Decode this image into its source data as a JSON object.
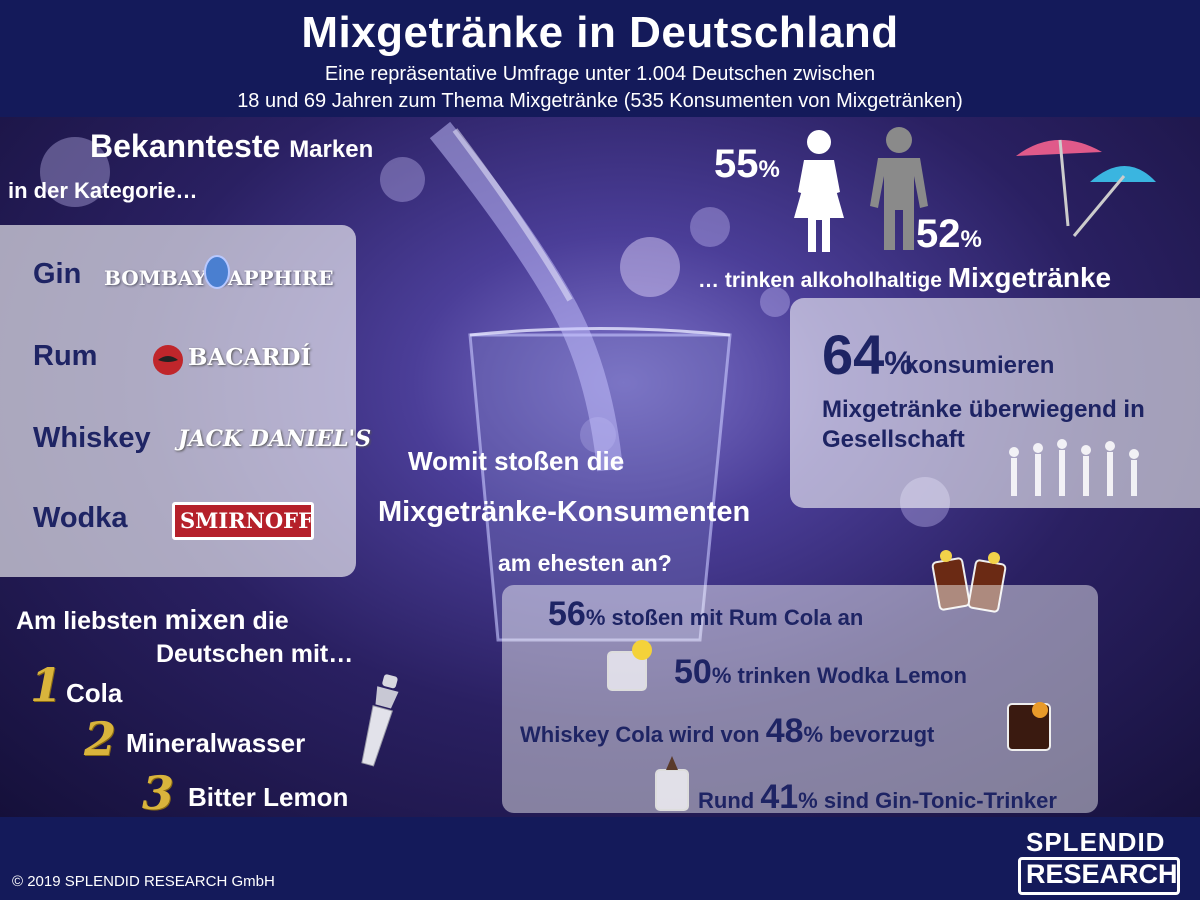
{
  "header": {
    "title": "Mixgetränke in Deutschland",
    "subtitle_line1": "Eine repräsentative Umfrage unter 1.004 Deutschen zwischen",
    "subtitle_line2": "18 und 69 Jahren zum Thema Mixgetränke (535 Konsumenten von Mixgetränken)"
  },
  "brands": {
    "heading_big": "Bekannteste",
    "heading_small": "Marken",
    "heading_line2": "in der Kategorie…",
    "items": [
      {
        "category": "Gin",
        "brand": "BOMBAY SAPPHIRE"
      },
      {
        "category": "Rum",
        "brand": "BACARDÍ"
      },
      {
        "category": "Whiskey",
        "brand": "JACK DANIEL'S"
      },
      {
        "category": "Wodka",
        "brand": "SMIRNOFF"
      }
    ]
  },
  "gender": {
    "women_value": "55",
    "men_value": "52",
    "percent_sign": "%",
    "caption_prefix": "… trinken alkoholhaltige",
    "caption_emph": "Mixgetränke"
  },
  "company": {
    "value": "64",
    "percent_sign": "%",
    "text1": "konsumieren",
    "text2": "Mixgetränke überwiegend in",
    "text3": "Gesellschaft"
  },
  "toast": {
    "line1": "Womit stoßen die",
    "line2": "Mixgetränke-Konsumenten",
    "line3": "am ehesten an?",
    "items": [
      {
        "pre": "",
        "value": "56",
        "unit": "%",
        "post": " stoßen mit Rum Cola an"
      },
      {
        "pre": "",
        "value": "50",
        "unit": "%",
        "post": " trinken Wodka Lemon"
      },
      {
        "pre": "Whiskey Cola wird von ",
        "value": "48",
        "unit": "%",
        "post": " bevorzugt"
      },
      {
        "pre": "Rund ",
        "value": "41",
        "unit": "%",
        "post": " sind Gin-Tonic-Trinker"
      }
    ]
  },
  "mixers": {
    "heading_a": "Am liebsten",
    "heading_b": "mixen",
    "heading_c": "die",
    "heading_line2": "Deutschen mit…",
    "items": [
      {
        "rank": "1",
        "label": "Cola"
      },
      {
        "rank": "2",
        "label": "Mineralwasser"
      },
      {
        "rank": "3",
        "label": "Bitter Lemon"
      }
    ]
  },
  "footer": {
    "copyright": "© 2019 SPLENDID RESEARCH GmbH",
    "logo_top": "SPLENDID",
    "logo_bottom": "RESEARCH"
  },
  "colors": {
    "navy": "#141a5a",
    "dark_text": "#1e2464",
    "gold": "#d9b43c",
    "bacardi_red": "#c0262b",
    "smirnoff_red": "#b5202a"
  }
}
